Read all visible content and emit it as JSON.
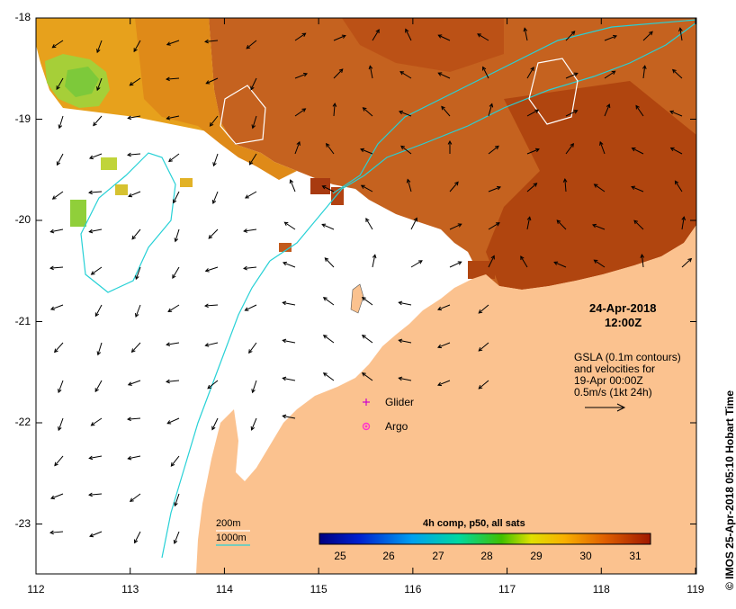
{
  "map": {
    "x_ticks": [
      "112",
      "113",
      "114",
      "115",
      "116",
      "117",
      "118",
      "119"
    ],
    "y_ticks": [
      "-18",
      "-19",
      "-20",
      "-21",
      "-22",
      "-23"
    ],
    "colors": {
      "land": "#fbc28f",
      "sst_warm": "#b2470f",
      "sst_mid": "#cc6a1e",
      "sst_cool": "#e8a318",
      "sst_green": "#9bd63a",
      "contour_200m": "#ffffff",
      "contour_1000m": "#27d1d6",
      "glider_marker": "#cc00cc",
      "argo_marker": "#ff33cc"
    }
  },
  "annotation": {
    "date": "24-Apr-2018",
    "time": "12:00Z",
    "gsla_lines": [
      "GSLA (0.1m contours)",
      "and velocities for",
      "19-Apr 00:00Z",
      "0.5m/s (1kt 24h)"
    ]
  },
  "legend": {
    "glider_label": "Glider",
    "argo_label": "Argo",
    "contour_200m_label": "200m",
    "contour_1000m_label": "1000m"
  },
  "colorbar": {
    "title": "4h comp, p50, all sats",
    "ticks": [
      "25",
      "26",
      "27",
      "28",
      "29",
      "30",
      "31"
    ]
  },
  "credit": "© IMOS 25-Apr-2018 05:10 Hobart Time"
}
